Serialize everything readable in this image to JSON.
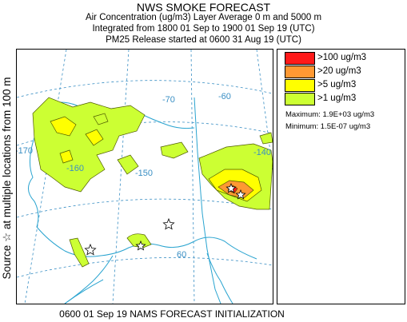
{
  "header": {
    "title": "NWS SMOKE FORECAST",
    "line2": "Air Concentration (ug/m3) Layer Average    0 m and  5000 m",
    "line3": "Integrated from 1800 01 Sep to 1900 01 Sep 19 (UTC)",
    "line4": "PM25 Release started at 0600 31 Aug 19 (UTC)"
  },
  "side_label": "Source ☆  at multiple locations    from   100 m",
  "footer": "0600 01 Sep 19 NAMS FORECAST INITIALIZATION",
  "map": {
    "graticule_labels": [
      "-170",
      "-160",
      "-150",
      "-70",
      "-60",
      "-140",
      "60"
    ]
  },
  "legend": {
    "items": [
      {
        "label": ">100 ug/m3",
        "color": "#ff1a1a"
      },
      {
        "label": ">20 ug/m3",
        "color": "#ff9933"
      },
      {
        "label": ">5 ug/m3",
        "color": "#ffff00"
      },
      {
        "label": ">1 ug/m3",
        "color": "#ccff33"
      }
    ],
    "maximum": "Maximum: 1.9E+03 ug/m3",
    "minimum": "Minimum: 1.5E-07 ug/m3"
  },
  "colors": {
    "coast": "#2aa4d0",
    "grid": "#3a8fc4",
    "plume_low": "#ccff33",
    "plume_mid": "#ffff00",
    "plume_high": "#ff9933",
    "plume_max": "#ff1a1a"
  }
}
